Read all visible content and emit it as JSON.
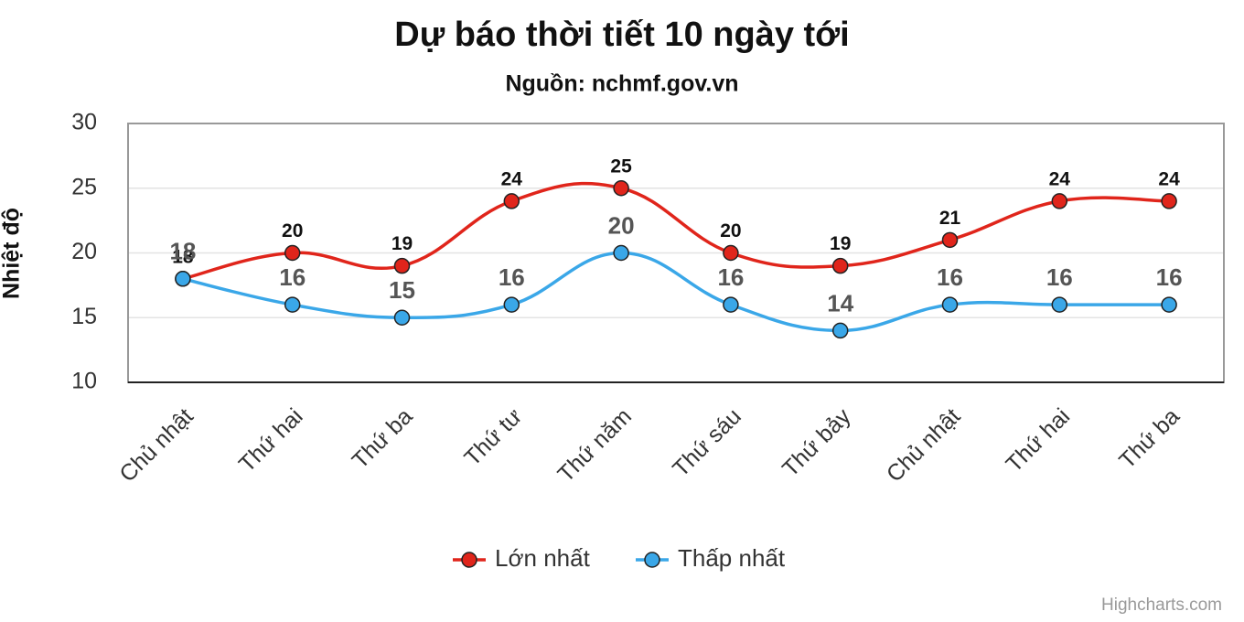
{
  "chart_data": {
    "type": "line",
    "title": "Dự báo thời tiết 10 ngày tới",
    "subtitle": "Nguồn: nchmf.gov.vn",
    "y_label": "Nhiệt độ",
    "categories": [
      "Chủ nhật",
      "Thứ hai",
      "Thứ ba",
      "Thứ tư",
      "Thứ năm",
      "Thứ sáu",
      "Thứ bảy",
      "Chủ nhật",
      "Thứ hai",
      "Thứ ba"
    ],
    "series": [
      {
        "name": "Lớn nhất",
        "color": "#e0251b",
        "values": [
          18,
          20,
          19,
          24,
          25,
          20,
          19,
          21,
          24,
          24
        ]
      },
      {
        "name": "Thấp nhất",
        "color": "#3aa7e8",
        "values": [
          18,
          16,
          15,
          16,
          20,
          16,
          14,
          16,
          16,
          16
        ]
      }
    ],
    "ylim": [
      10,
      30
    ],
    "yticks": [
      10,
      15,
      20,
      25,
      30
    ],
    "grid": true,
    "credits": "Highcharts.com"
  }
}
